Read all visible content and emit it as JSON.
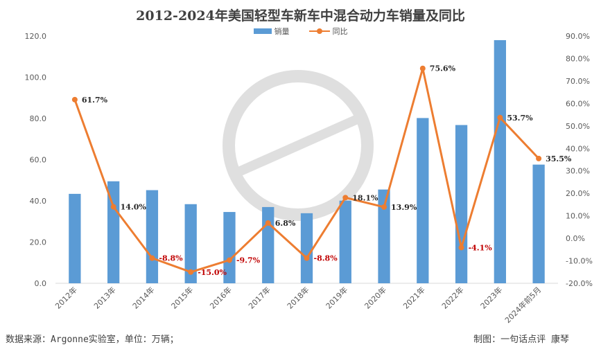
{
  "chart_data": {
    "type": "bar",
    "title": "2012-2024年美国轻型车新车中混合动力车销量及同比",
    "categories": [
      "2012年",
      "2013年",
      "2014年",
      "2015年",
      "2016年",
      "2017年",
      "2018年",
      "2019年",
      "2020年",
      "2021年",
      "2022年",
      "2023年",
      "2024年前5月"
    ],
    "series": [
      {
        "name": "销量",
        "type": "bar",
        "axis": "left",
        "color": "#5b9bd5",
        "values": [
          43.4,
          49.5,
          45.2,
          38.4,
          34.6,
          37.0,
          34.0,
          40.1,
          45.5,
          80.2,
          76.8,
          118.0,
          57.6
        ]
      },
      {
        "name": "同比",
        "type": "line",
        "axis": "right",
        "color": "#ed7d31",
        "values": [
          61.7,
          14.0,
          -8.8,
          -15.0,
          -9.7,
          6.8,
          -8.8,
          18.1,
          13.9,
          75.6,
          -4.1,
          53.7,
          35.5
        ],
        "labels": [
          "61.7%",
          "14.0%",
          "-8.8%",
          "-15.0%",
          "-9.7%",
          "6.8%",
          "-8.8%",
          "18.1%",
          "13.9%",
          "75.6%",
          "-4.1%",
          "53.7%",
          "35.5%"
        ]
      }
    ],
    "y_left": {
      "min": 0,
      "max": 120,
      "ticks": [
        "0.0",
        "20.0",
        "40.0",
        "60.0",
        "80.0",
        "100.0",
        "120.0"
      ]
    },
    "y_right": {
      "min": -20,
      "max": 90,
      "ticks": [
        "-20.0%",
        "-10.0%",
        "0.0%",
        "10.0%",
        "20.0%",
        "30.0%",
        "40.0%",
        "50.0%",
        "60.0%",
        "70.0%",
        "80.0%",
        "90.0%"
      ]
    },
    "legend_position": "top-center",
    "grid": false,
    "positive_label_color": "#262626",
    "negative_label_color": "#c00000"
  },
  "legend": {
    "bar_label": "销量",
    "line_label": "同比"
  },
  "footer": {
    "source": "数据来源：Argonne实验室，单位：万辆；",
    "credit": "制图：一句话点评 康琴"
  }
}
